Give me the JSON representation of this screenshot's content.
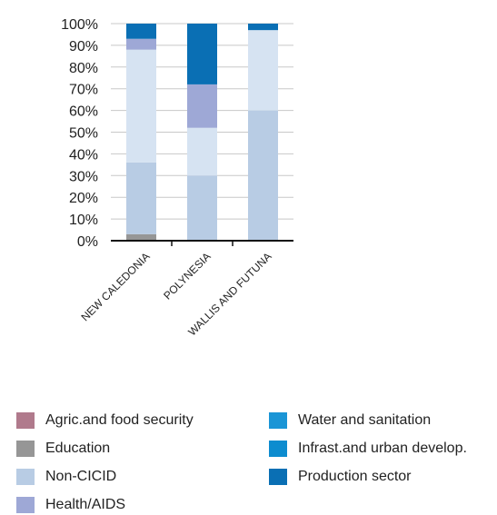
{
  "chart_data": {
    "type": "bar",
    "stacked": true,
    "percent": true,
    "categories": [
      "NEW CALEDONIA",
      "POLYNESIA",
      "WALLIS AND FUTUNA"
    ],
    "y_ticks": [
      "0%",
      "10%",
      "20%",
      "30%",
      "40%",
      "50%",
      "60%",
      "70%",
      "80%",
      "90%",
      "100%"
    ],
    "ylim": [
      0,
      100
    ],
    "grid": true,
    "legend_position": "bottom",
    "series": [
      {
        "name": "Agric.and food security",
        "color": "#b07a8c",
        "values": [
          0,
          0,
          0
        ]
      },
      {
        "name": "Education",
        "color": "#969696",
        "values": [
          3,
          0,
          0
        ]
      },
      {
        "name": "Non-CICID",
        "color": "#b8cce4",
        "values": [
          33,
          30,
          60
        ]
      },
      {
        "name": "Non-CICID",
        "color": "#d6e3f2",
        "values": [
          52,
          22,
          37
        ]
      },
      {
        "name": "Health/AIDS",
        "color": "#9ea8d6",
        "values": [
          5,
          20,
          0
        ]
      },
      {
        "name": "Water and sanitation",
        "color": "#1a95d6",
        "values": [
          0,
          0,
          0
        ]
      },
      {
        "name": "Infrast.and urban develop.",
        "color": "#0d8ccf",
        "values": [
          0,
          0,
          0
        ]
      },
      {
        "name": "Production sector",
        "color": "#0a6fb4",
        "values": [
          7,
          28,
          3
        ]
      }
    ]
  },
  "legend": [
    {
      "label": "Agric.and food security",
      "color": "#b07a8c"
    },
    {
      "label": "Education",
      "color": "#969696"
    },
    {
      "label": "Non-CICID",
      "color": "#b8cce4"
    },
    {
      "label": "Health/AIDS",
      "color": "#9ea8d6"
    },
    {
      "label": "Water and sanitation",
      "color": "#1a95d6"
    },
    {
      "label": "Infrast.and urban develop.",
      "color": "#0d8ccf"
    },
    {
      "label": "Production sector",
      "color": "#0a6fb4"
    }
  ]
}
